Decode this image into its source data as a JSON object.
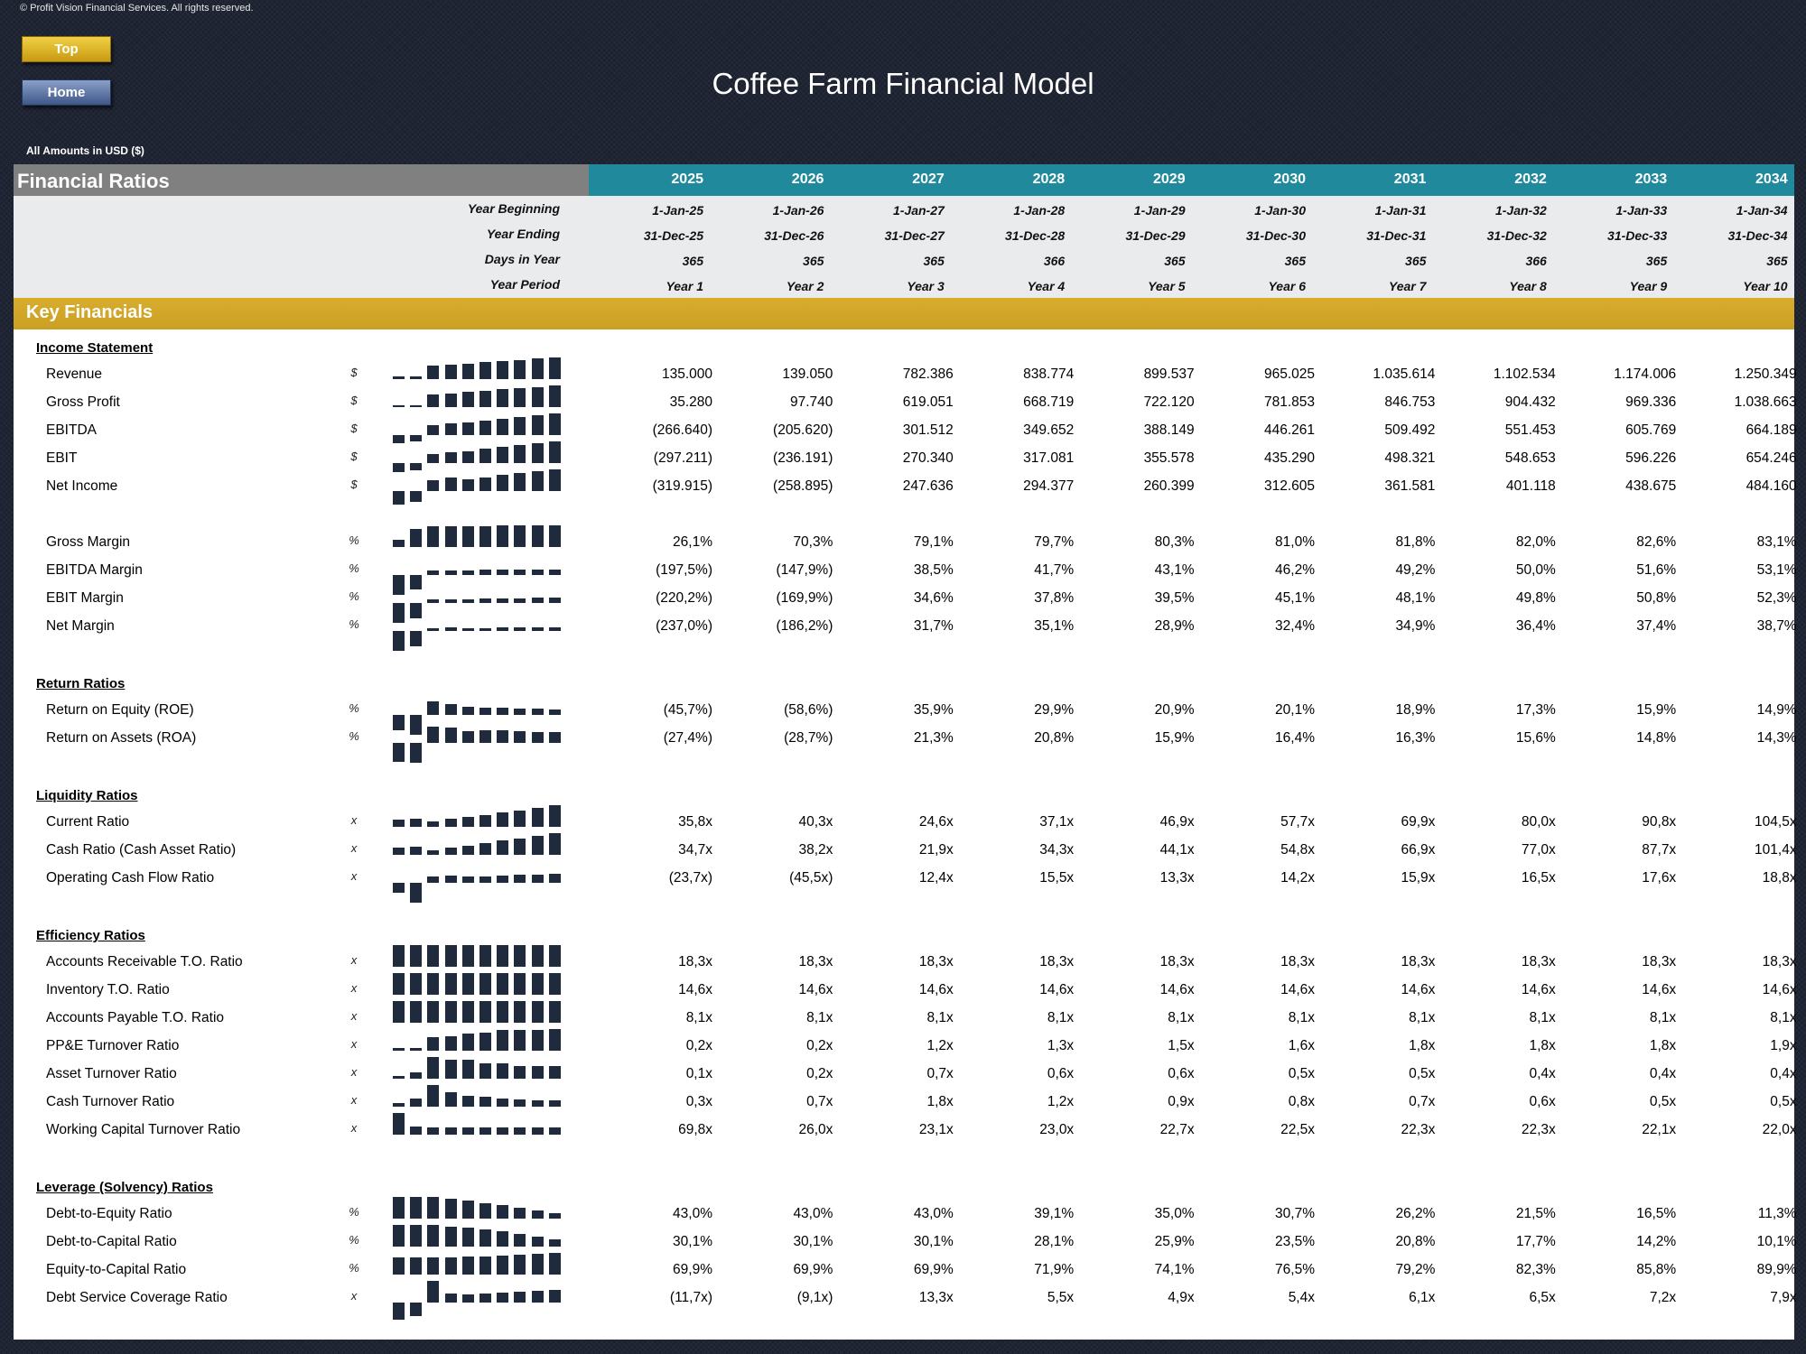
{
  "copyright": "© Profit Vision Financial Services. All rights reserved.",
  "buttons": {
    "top": "Top",
    "home": "Home"
  },
  "title": "Coffee Farm Financial Model",
  "currency_note": "All Amounts in  USD ($)",
  "header": {
    "section_title": "Financial Ratios",
    "years": [
      "2025",
      "2026",
      "2027",
      "2028",
      "2029",
      "2030",
      "2031",
      "2032",
      "2033",
      "2034"
    ]
  },
  "info_rows": [
    {
      "label": "Year Beginning",
      "values": [
        "1-Jan-25",
        "1-Jan-26",
        "1-Jan-27",
        "1-Jan-28",
        "1-Jan-29",
        "1-Jan-30",
        "1-Jan-31",
        "1-Jan-32",
        "1-Jan-33",
        "1-Jan-34"
      ]
    },
    {
      "label": "Year Ending",
      "values": [
        "31-Dec-25",
        "31-Dec-26",
        "31-Dec-27",
        "31-Dec-28",
        "31-Dec-29",
        "31-Dec-30",
        "31-Dec-31",
        "31-Dec-32",
        "31-Dec-33",
        "31-Dec-34"
      ]
    },
    {
      "label": "Days in Year",
      "values": [
        "365",
        "365",
        "365",
        "366",
        "365",
        "365",
        "365",
        "366",
        "365",
        "365"
      ]
    },
    {
      "label": "Year Period",
      "values": [
        "Year 1",
        "Year 2",
        "Year 3",
        "Year 4",
        "Year 5",
        "Year 6",
        "Year 7",
        "Year 8",
        "Year 9",
        "Year 10"
      ]
    }
  ],
  "key_financials_title": "Key Financials",
  "sections": [
    {
      "title": "Income Statement",
      "groups": [
        [
          {
            "label": "Revenue",
            "unit": "$",
            "values": [
              "135.000",
              "139.050",
              "782.386",
              "838.774",
              "899.537",
              "965.025",
              "1.035.614",
              "1.102.534",
              "1.174.006",
              "1.250.349"
            ],
            "spark": [
              135000,
              139050,
              782386,
              838774,
              899537,
              965025,
              1035614,
              1102534,
              1174006,
              1250349
            ]
          },
          {
            "label": "Gross Profit",
            "unit": "$",
            "values": [
              "35.280",
              "97.740",
              "619.051",
              "668.719",
              "722.120",
              "781.853",
              "846.753",
              "904.432",
              "969.336",
              "1.038.663"
            ],
            "spark": [
              35280,
              97740,
              619051,
              668719,
              722120,
              781853,
              846753,
              904432,
              969336,
              1038663
            ]
          },
          {
            "label": "EBITDA",
            "unit": "$",
            "values": [
              "(266.640)",
              "(205.620)",
              "301.512",
              "349.652",
              "388.149",
              "446.261",
              "509.492",
              "551.453",
              "605.769",
              "664.189"
            ],
            "spark": [
              -266640,
              -205620,
              301512,
              349652,
              388149,
              446261,
              509492,
              551453,
              605769,
              664189
            ]
          },
          {
            "label": "EBIT",
            "unit": "$",
            "values": [
              "(297.211)",
              "(236.191)",
              "270.340",
              "317.081",
              "355.578",
              "435.290",
              "498.321",
              "548.653",
              "596.226",
              "654.246"
            ],
            "spark": [
              -297211,
              -236191,
              270340,
              317081,
              355578,
              435290,
              498321,
              548653,
              596226,
              654246
            ]
          },
          {
            "label": "Net Income",
            "unit": "$",
            "values": [
              "(319.915)",
              "(258.895)",
              "247.636",
              "294.377",
              "260.399",
              "312.605",
              "361.581",
              "401.118",
              "438.675",
              "484.160"
            ],
            "spark": [
              -319915,
              -258895,
              247636,
              294377,
              260399,
              312605,
              361581,
              401118,
              438675,
              484160
            ]
          }
        ],
        [
          {
            "label": "Gross Margin",
            "unit": "%",
            "values": [
              "26,1%",
              "70,3%",
              "79,1%",
              "79,7%",
              "80,3%",
              "81,0%",
              "81,8%",
              "82,0%",
              "82,6%",
              "83,1%"
            ],
            "spark": [
              26.1,
              70.3,
              79.1,
              79.7,
              80.3,
              81.0,
              81.8,
              82.0,
              82.6,
              83.1
            ]
          },
          {
            "label": "EBITDA Margin",
            "unit": "%",
            "values": [
              "(197,5%)",
              "(147,9%)",
              "38,5%",
              "41,7%",
              "43,1%",
              "46,2%",
              "49,2%",
              "50,0%",
              "51,6%",
              "53,1%"
            ],
            "spark": [
              -197.5,
              -147.9,
              38.5,
              41.7,
              43.1,
              46.2,
              49.2,
              50.0,
              51.6,
              53.1
            ]
          },
          {
            "label": "EBIT Margin",
            "unit": "%",
            "values": [
              "(220,2%)",
              "(169,9%)",
              "34,6%",
              "37,8%",
              "39,5%",
              "45,1%",
              "48,1%",
              "49,8%",
              "50,8%",
              "52,3%"
            ],
            "spark": [
              -220.2,
              -169.9,
              34.6,
              37.8,
              39.5,
              45.1,
              48.1,
              49.8,
              50.8,
              52.3
            ]
          },
          {
            "label": "Net Margin",
            "unit": "%",
            "values": [
              "(237,0%)",
              "(186,2%)",
              "31,7%",
              "35,1%",
              "28,9%",
              "32,4%",
              "34,9%",
              "36,4%",
              "37,4%",
              "38,7%"
            ],
            "spark": [
              -237.0,
              -186.2,
              31.7,
              35.1,
              28.9,
              32.4,
              34.9,
              36.4,
              37.4,
              38.7
            ]
          }
        ]
      ]
    },
    {
      "title": "Return Ratios",
      "groups": [
        [
          {
            "label": "Return on Equity (ROE)",
            "unit": "%",
            "values": [
              "(45,7%)",
              "(58,6%)",
              "35,9%",
              "29,9%",
              "20,9%",
              "20,1%",
              "18,9%",
              "17,3%",
              "15,9%",
              "14,9%"
            ],
            "spark": [
              -45.7,
              -58.6,
              35.9,
              29.9,
              20.9,
              20.1,
              18.9,
              17.3,
              15.9,
              14.9
            ]
          },
          {
            "label": "Return on Assets (ROA)",
            "unit": "%",
            "values": [
              "(27,4%)",
              "(28,7%)",
              "21,3%",
              "20,8%",
              "15,9%",
              "16,4%",
              "16,3%",
              "15,6%",
              "14,8%",
              "14,3%"
            ],
            "spark": [
              -27.4,
              -28.7,
              21.3,
              20.8,
              15.9,
              16.4,
              16.3,
              15.6,
              14.8,
              14.3
            ]
          }
        ]
      ]
    },
    {
      "title": "Liquidity Ratios",
      "groups": [
        [
          {
            "label": "Current Ratio",
            "unit": "x",
            "values": [
              "35,8x",
              "40,3x",
              "24,6x",
              "37,1x",
              "46,9x",
              "57,7x",
              "69,9x",
              "80,0x",
              "90,8x",
              "104,5x"
            ],
            "spark": [
              35.8,
              40.3,
              24.6,
              37.1,
              46.9,
              57.7,
              69.9,
              80.0,
              90.8,
              104.5
            ]
          },
          {
            "label": "Cash Ratio (Cash Asset Ratio)",
            "unit": "x",
            "values": [
              "34,7x",
              "38,2x",
              "21,9x",
              "34,3x",
              "44,1x",
              "54,8x",
              "66,9x",
              "77,0x",
              "87,7x",
              "101,4x"
            ],
            "spark": [
              34.7,
              38.2,
              21.9,
              34.3,
              44.1,
              54.8,
              66.9,
              77.0,
              87.7,
              101.4
            ]
          },
          {
            "label": "Operating Cash Flow Ratio",
            "unit": "x",
            "values": [
              "(23,7x)",
              "(45,5x)",
              "12,4x",
              "15,5x",
              "13,3x",
              "14,2x",
              "15,9x",
              "16,5x",
              "17,6x",
              "18,8x"
            ],
            "spark": [
              -23.7,
              -45.5,
              12.4,
              15.5,
              13.3,
              14.2,
              15.9,
              16.5,
              17.6,
              18.8
            ]
          }
        ]
      ]
    },
    {
      "title": "Efficiency Ratios",
      "groups": [
        [
          {
            "label": "Accounts Receivable T.O. Ratio",
            "unit": "x",
            "values": [
              "18,3x",
              "18,3x",
              "18,3x",
              "18,3x",
              "18,3x",
              "18,3x",
              "18,3x",
              "18,3x",
              "18,3x",
              "18,3x"
            ],
            "spark": [
              18.27,
              18.27,
              18.27,
              18.33,
              18.27,
              18.27,
              18.27,
              18.33,
              18.27,
              18.27
            ]
          },
          {
            "label": "Inventory T.O. Ratio",
            "unit": "x",
            "values": [
              "14,6x",
              "14,6x",
              "14,6x",
              "14,6x",
              "14,6x",
              "14,6x",
              "14,6x",
              "14,6x",
              "14,6x",
              "14,6x"
            ],
            "spark": [
              14.57,
              14.57,
              14.57,
              14.63,
              14.57,
              14.57,
              14.57,
              14.63,
              14.57,
              14.57
            ]
          },
          {
            "label": "Accounts Payable T.O. Ratio",
            "unit": "x",
            "values": [
              "8,1x",
              "8,1x",
              "8,1x",
              "8,1x",
              "8,1x",
              "8,1x",
              "8,1x",
              "8,1x",
              "8,1x",
              "8,1x"
            ],
            "spark": [
              8.09,
              8.09,
              8.09,
              8.12,
              8.09,
              8.09,
              8.09,
              8.12,
              8.09,
              8.09
            ]
          },
          {
            "label": "PP&E Turnover Ratio",
            "unit": "x",
            "values": [
              "0,2x",
              "0,2x",
              "1,2x",
              "1,3x",
              "1,5x",
              "1,6x",
              "1,8x",
              "1,8x",
              "1,8x",
              "1,9x"
            ],
            "spark": [
              0.2,
              0.2,
              1.2,
              1.3,
              1.5,
              1.6,
              1.8,
              1.8,
              1.8,
              1.9
            ]
          },
          {
            "label": "Asset Turnover Ratio",
            "unit": "x",
            "values": [
              "0,1x",
              "0,2x",
              "0,7x",
              "0,6x",
              "0,6x",
              "0,5x",
              "0,5x",
              "0,4x",
              "0,4x",
              "0,4x"
            ],
            "spark": [
              0.1,
              0.2,
              0.7,
              0.6,
              0.6,
              0.5,
              0.5,
              0.4,
              0.4,
              0.4
            ]
          },
          {
            "label": "Cash Turnover Ratio",
            "unit": "x",
            "values": [
              "0,3x",
              "0,7x",
              "1,8x",
              "1,2x",
              "0,9x",
              "0,8x",
              "0,7x",
              "0,6x",
              "0,5x",
              "0,5x"
            ],
            "spark": [
              0.3,
              0.7,
              1.8,
              1.2,
              0.9,
              0.8,
              0.7,
              0.6,
              0.5,
              0.5
            ]
          },
          {
            "label": "Working Capital Turnover Ratio",
            "unit": "x",
            "values": [
              "69,8x",
              "26,0x",
              "23,1x",
              "23,0x",
              "22,7x",
              "22,5x",
              "22,3x",
              "22,3x",
              "22,1x",
              "22,0x"
            ],
            "spark": [
              69.8,
              26.0,
              23.1,
              23.0,
              22.7,
              22.5,
              22.3,
              22.3,
              22.1,
              22.0
            ]
          }
        ]
      ]
    },
    {
      "title": "Leverage (Solvency) Ratios",
      "groups": [
        [
          {
            "label": "Debt-to-Equity Ratio",
            "unit": "%",
            "values": [
              "43,0%",
              "43,0%",
              "43,0%",
              "39,1%",
              "35,0%",
              "30,7%",
              "26,2%",
              "21,5%",
              "16,5%",
              "11,3%"
            ],
            "spark": [
              43.0,
              43.0,
              43.0,
              39.1,
              35.0,
              30.7,
              26.2,
              21.5,
              16.5,
              11.3
            ]
          },
          {
            "label": "Debt-to-Capital Ratio",
            "unit": "%",
            "values": [
              "30,1%",
              "30,1%",
              "30,1%",
              "28,1%",
              "25,9%",
              "23,5%",
              "20,8%",
              "17,7%",
              "14,2%",
              "10,1%"
            ],
            "spark": [
              30.1,
              30.1,
              30.1,
              28.1,
              25.9,
              23.5,
              20.8,
              17.7,
              14.2,
              10.1
            ]
          },
          {
            "label": "Equity-to-Capital Ratio",
            "unit": "%",
            "values": [
              "69,9%",
              "69,9%",
              "69,9%",
              "71,9%",
              "74,1%",
              "76,5%",
              "79,2%",
              "82,3%",
              "85,8%",
              "89,9%"
            ],
            "spark": [
              69.9,
              69.9,
              69.9,
              71.9,
              74.1,
              76.5,
              79.2,
              82.3,
              85.8,
              89.9
            ]
          },
          {
            "label": "Debt Service Coverage Ratio",
            "unit": "x",
            "values": [
              "(11,7x)",
              "(9,1x)",
              "13,3x",
              "5,5x",
              "4,9x",
              "5,4x",
              "6,1x",
              "6,5x",
              "7,2x",
              "7,9x"
            ],
            "spark": [
              -11.7,
              -9.1,
              13.3,
              5.5,
              4.9,
              5.4,
              6.1,
              6.5,
              7.2,
              7.9
            ]
          }
        ]
      ]
    }
  ]
}
